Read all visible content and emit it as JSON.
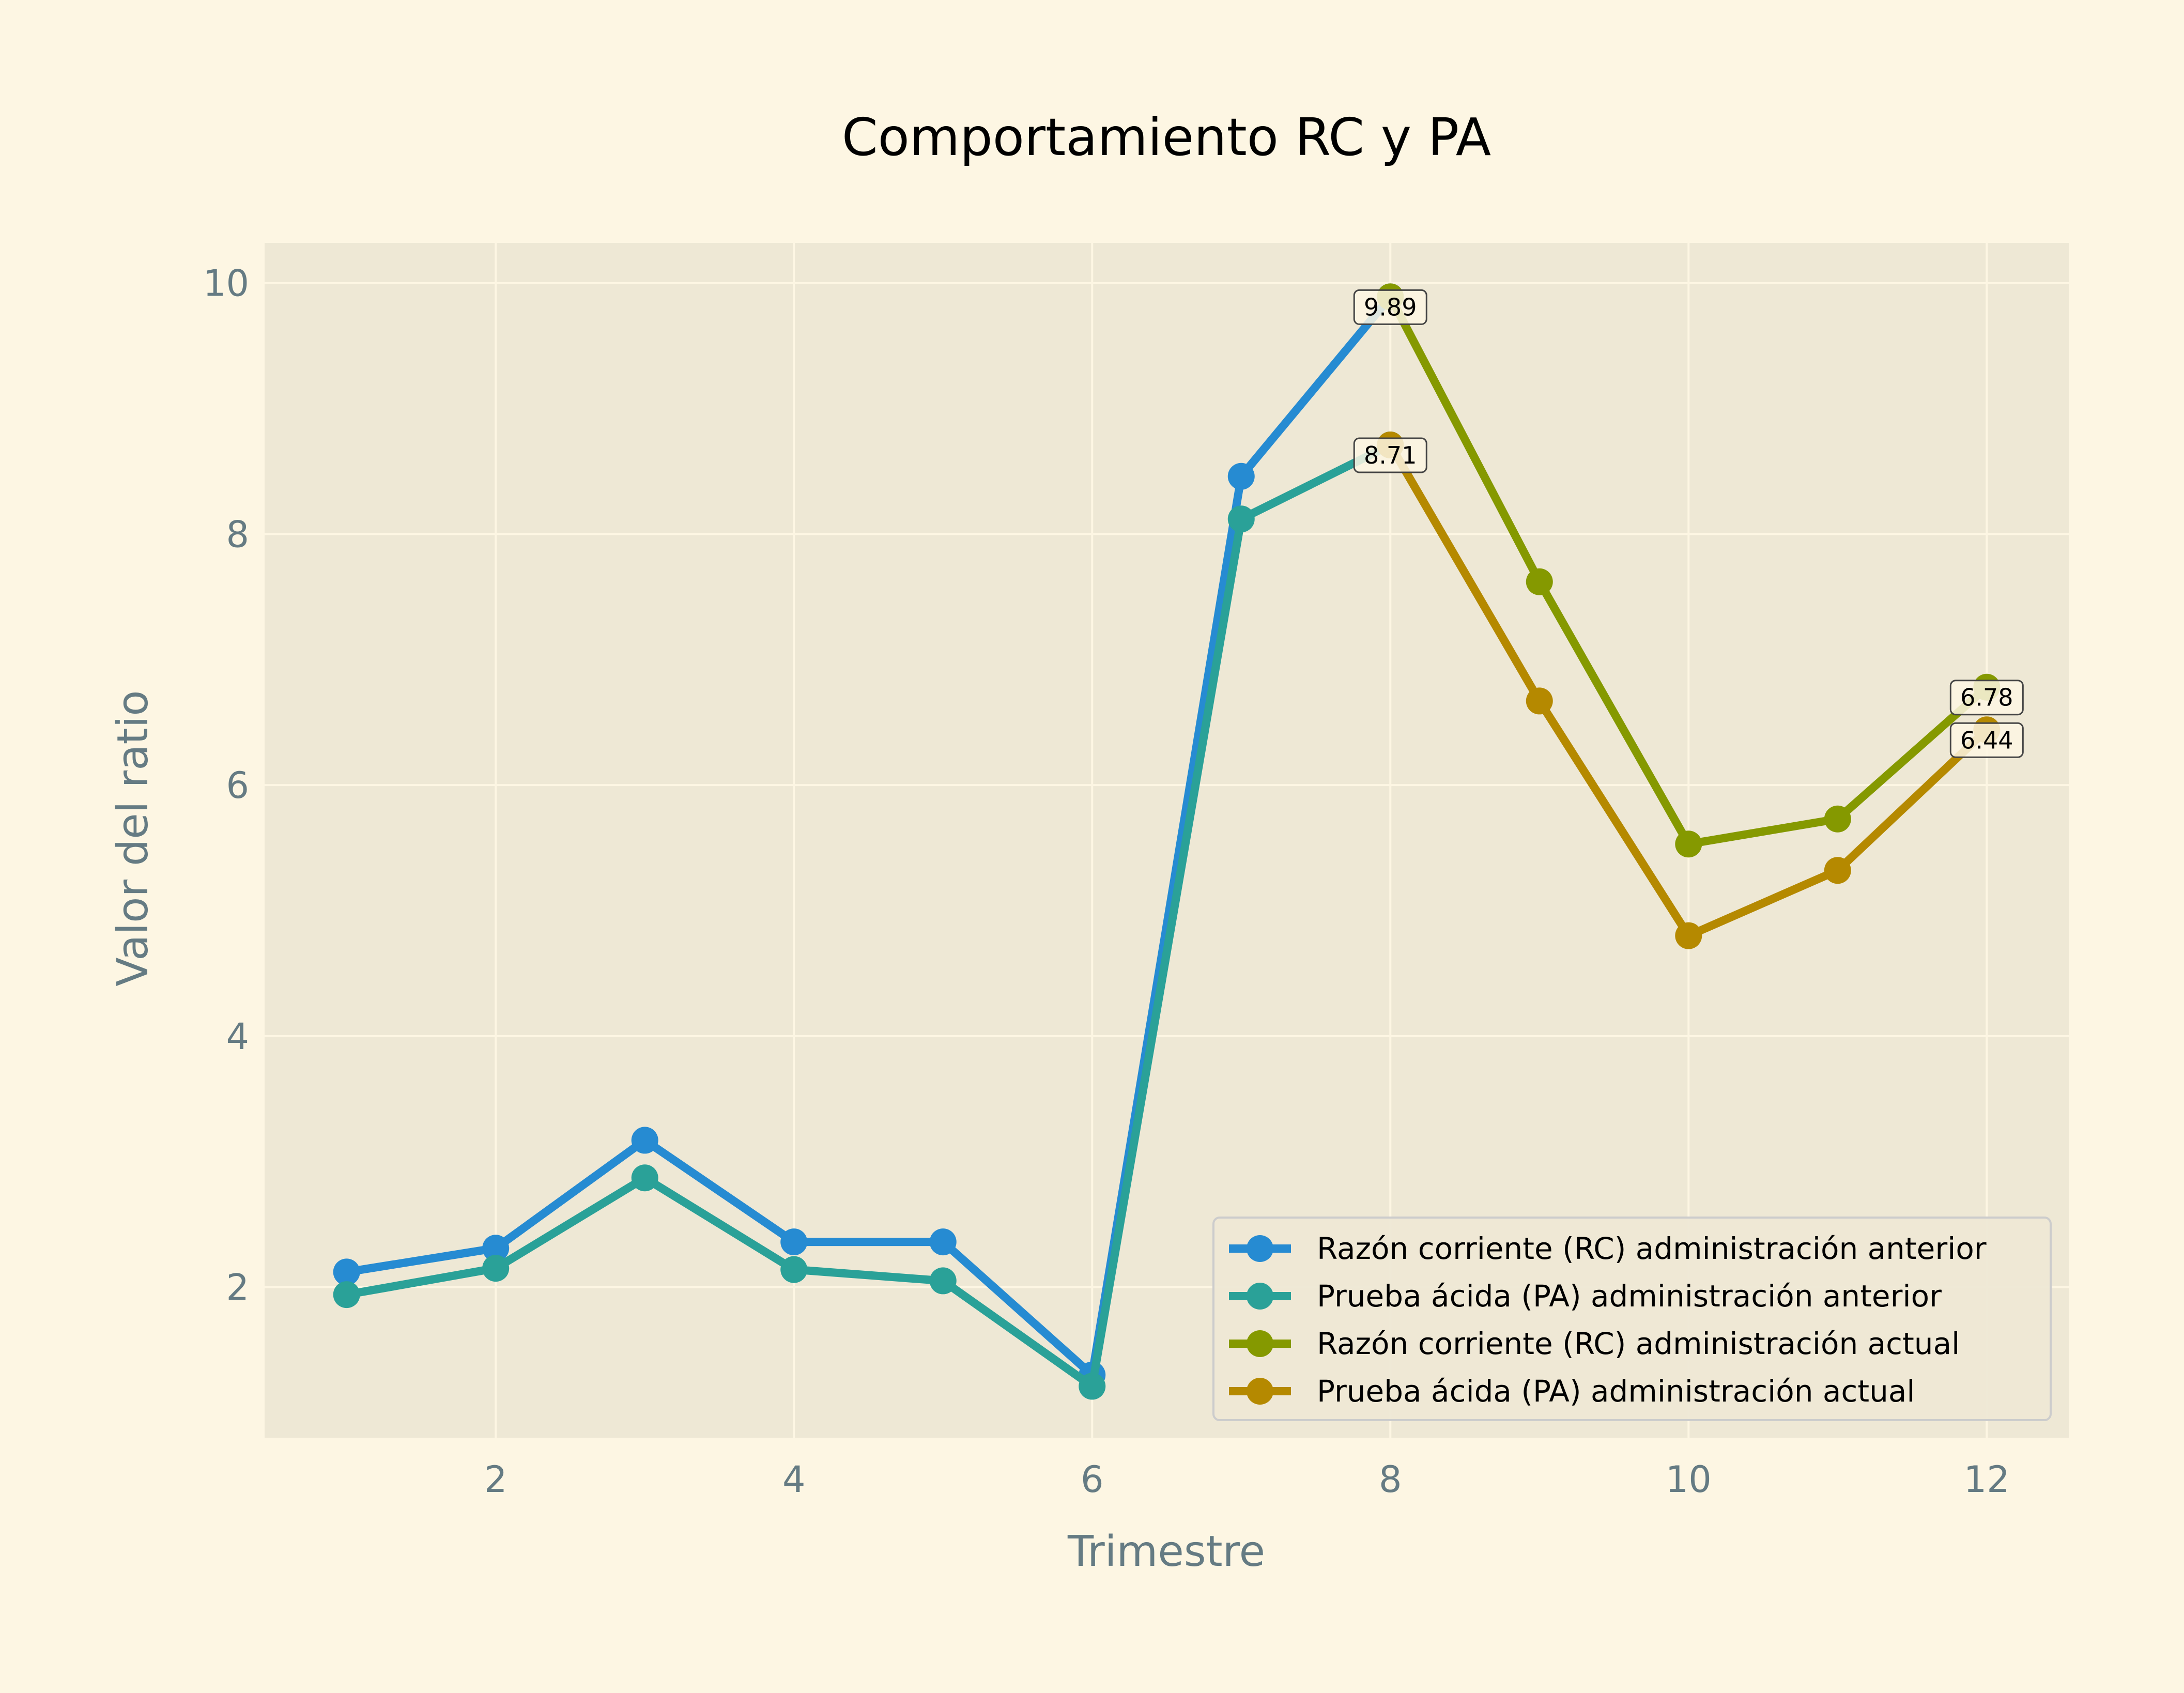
{
  "chart_data": {
    "type": "line",
    "title": "Comportamiento RC y PA",
    "xlabel": "Trimestre",
    "ylabel": "Valor del ratio",
    "xlim": [
      0.45,
      12.55
    ],
    "ylim": [
      0.8,
      10.32
    ],
    "xticks": [
      2,
      4,
      6,
      8,
      10,
      12
    ],
    "yticks": [
      2,
      4,
      6,
      8,
      10
    ],
    "grid": true,
    "legend_position": "lower-right",
    "colors": {
      "page_background": "#fdf6e3",
      "plot_background": "#eee8d5",
      "grid": "#fdf6e3",
      "axis_text": "#657b83",
      "title_text": "#000000"
    },
    "series": [
      {
        "name": "Razón corriente (RC) administración anterior",
        "color": "#268bd2",
        "x": [
          1,
          2,
          3,
          4,
          5,
          6,
          7,
          8
        ],
        "y": [
          2.12,
          2.31,
          3.17,
          2.36,
          2.36,
          1.3,
          8.46,
          9.89
        ]
      },
      {
        "name": "Prueba ácida (PA) administración anterior",
        "color": "#2aa198",
        "x": [
          1,
          2,
          3,
          4,
          5,
          6,
          7,
          8
        ],
        "y": [
          1.94,
          2.15,
          2.87,
          2.14,
          2.05,
          1.21,
          8.12,
          8.71
        ]
      },
      {
        "name": "Razón corriente (RC) administración actual",
        "color": "#859900",
        "x": [
          8,
          9,
          10,
          11,
          12
        ],
        "y": [
          9.89,
          7.62,
          5.53,
          5.73,
          6.78
        ]
      },
      {
        "name": "Prueba ácida (PA) administración actual",
        "color": "#b58900",
        "x": [
          8,
          9,
          10,
          11,
          12
        ],
        "y": [
          8.71,
          6.67,
          4.8,
          5.32,
          6.44
        ]
      }
    ],
    "annotations": [
      {
        "x": 8,
        "y": 9.89,
        "text": "9.89"
      },
      {
        "x": 8,
        "y": 8.71,
        "text": "8.71"
      },
      {
        "x": 12,
        "y": 6.78,
        "text": "6.78"
      },
      {
        "x": 12,
        "y": 6.44,
        "text": "6.44"
      }
    ]
  }
}
